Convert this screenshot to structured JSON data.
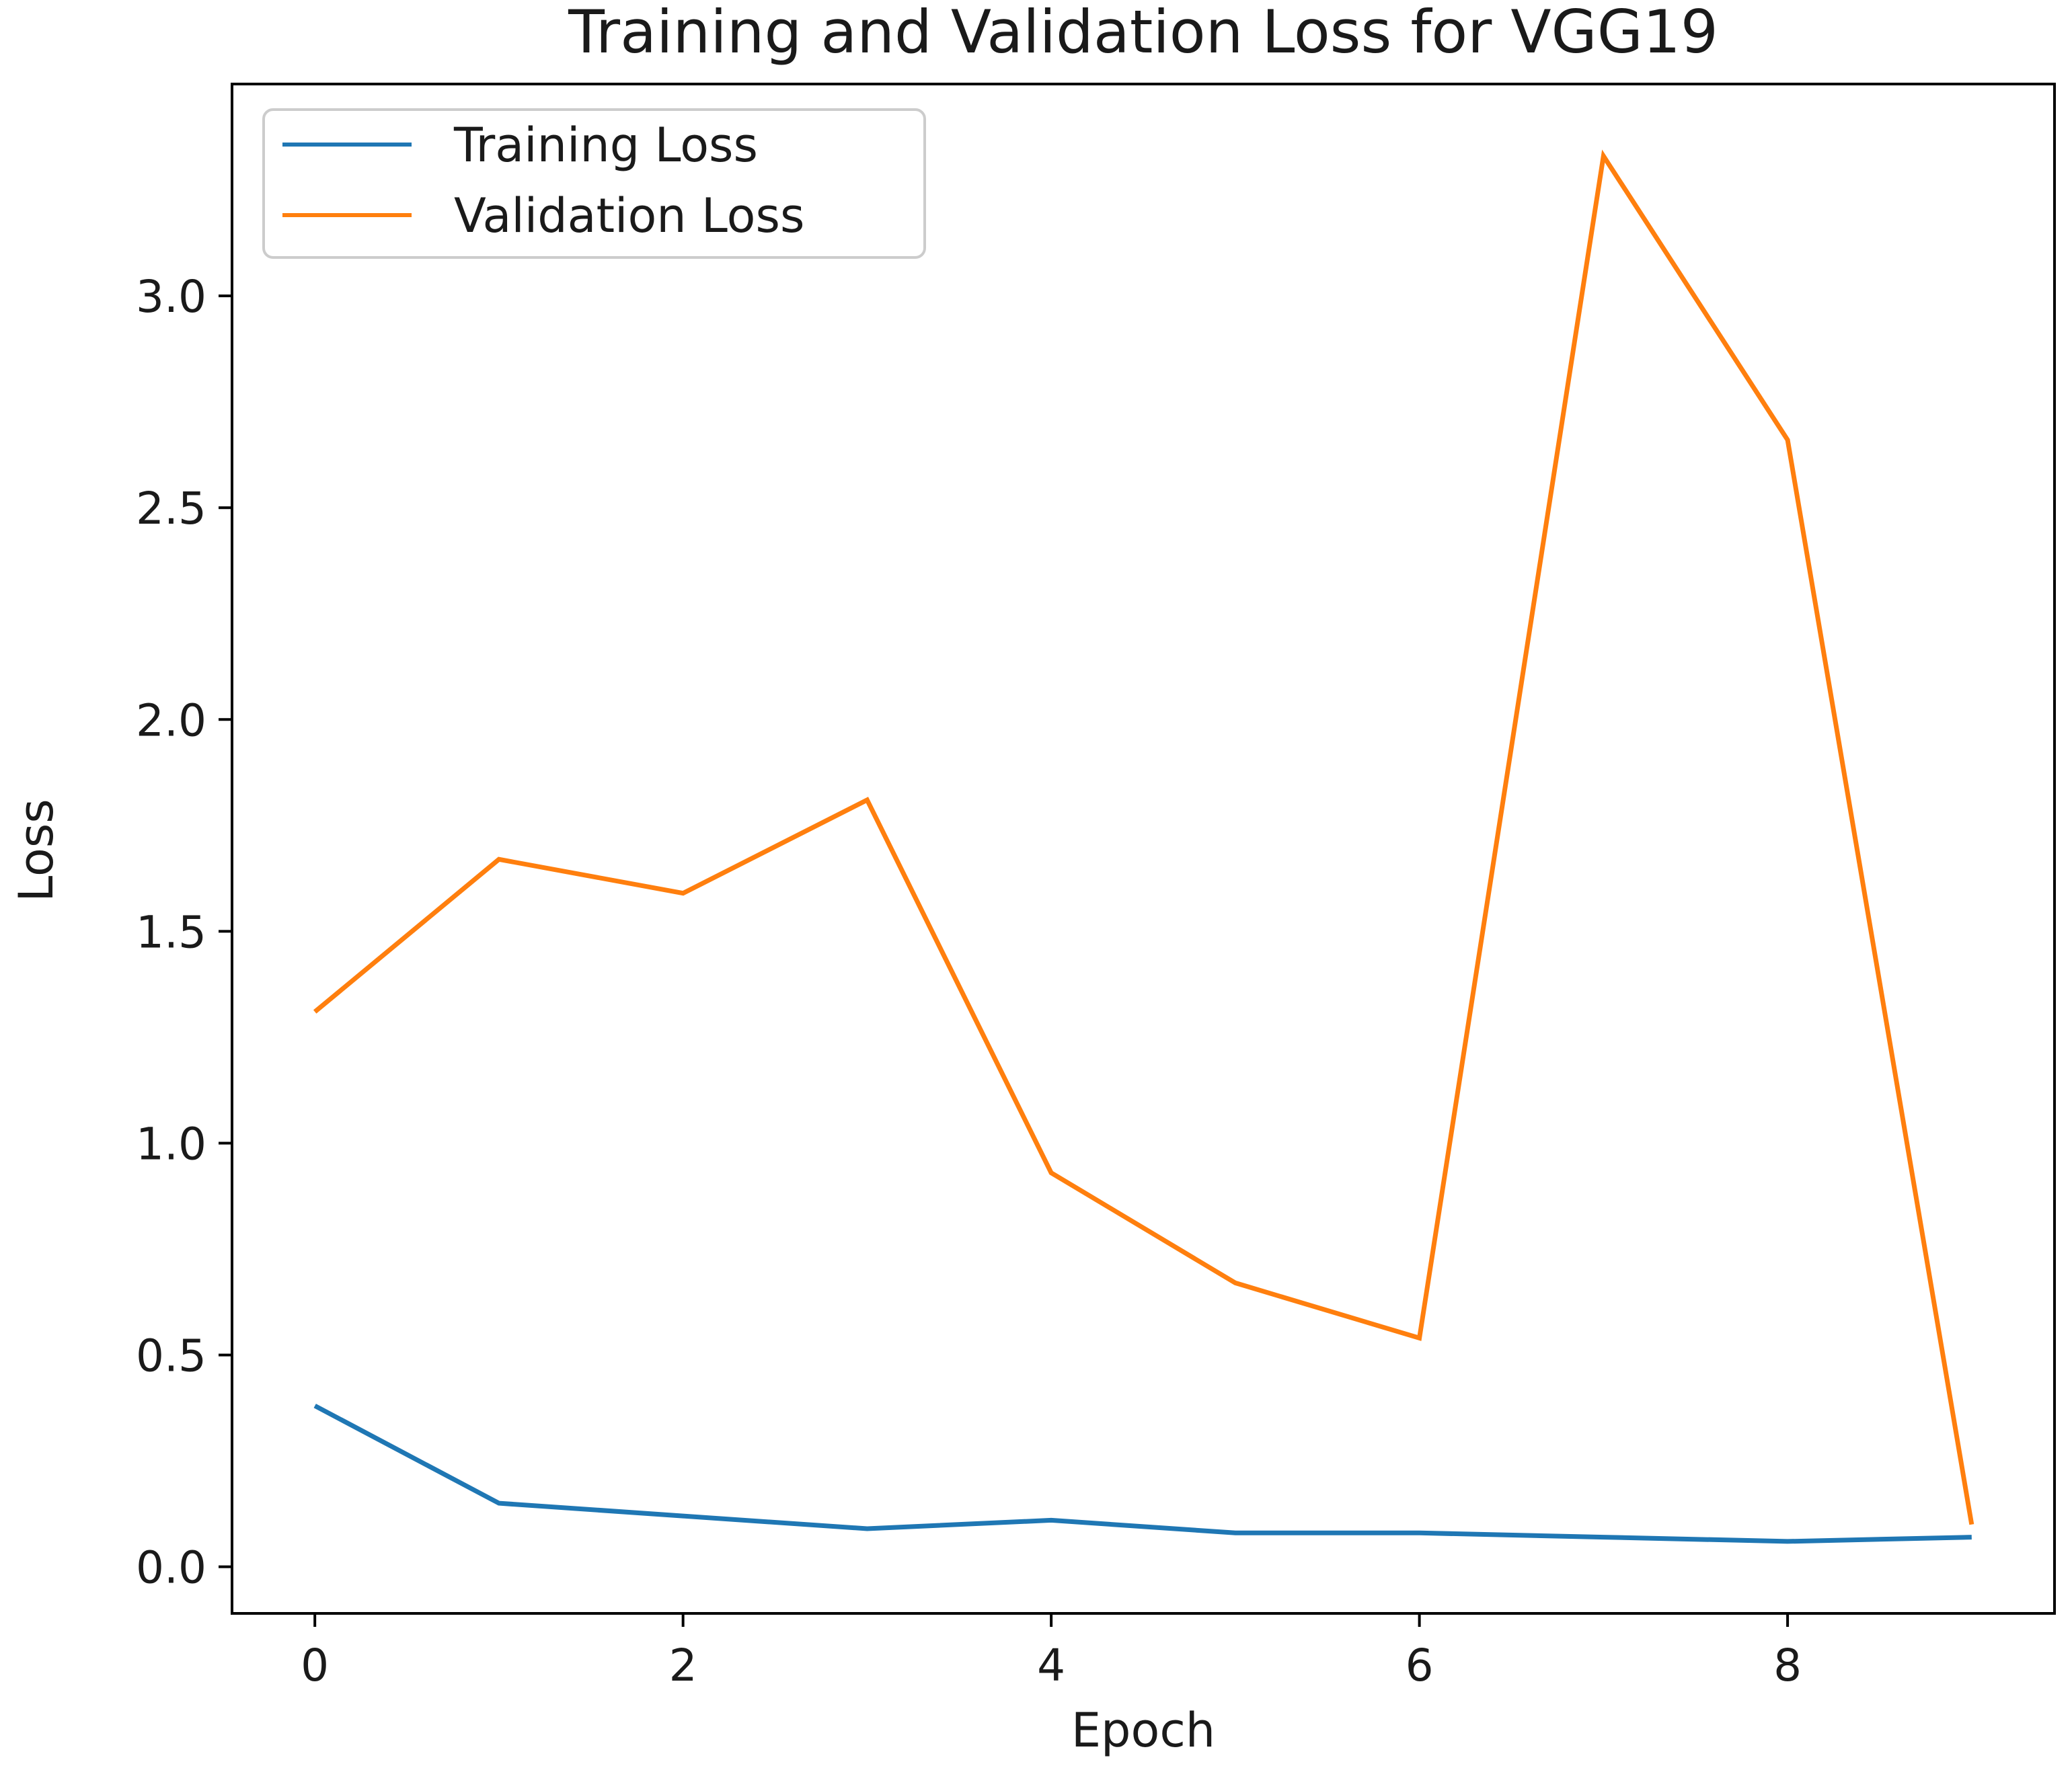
{
  "chart_data": {
    "type": "line",
    "title": "Training and Validation Loss for VGG19",
    "xlabel": "Epoch",
    "ylabel": "Loss",
    "xlim": [
      -0.45,
      9.45
    ],
    "ylim": [
      -0.11,
      3.5
    ],
    "xticks": [
      0,
      2,
      4,
      6,
      8
    ],
    "xtick_labels": [
      "0",
      "2",
      "4",
      "6",
      "8"
    ],
    "yticks": [
      0.0,
      0.5,
      1.0,
      1.5,
      2.0,
      2.5,
      3.0
    ],
    "ytick_labels": [
      "0.0",
      "0.5",
      "1.0",
      "1.5",
      "2.0",
      "2.5",
      "3.0"
    ],
    "grid": false,
    "legend_position": "top-left",
    "x": [
      0,
      1,
      2,
      3,
      4,
      5,
      6,
      7,
      8,
      9
    ],
    "series": [
      {
        "name": "Training Loss",
        "color": "#1f77b4",
        "values": [
          0.38,
          0.15,
          0.12,
          0.09,
          0.11,
          0.08,
          0.08,
          0.07,
          0.06,
          0.07
        ]
      },
      {
        "name": "Validation Loss",
        "color": "#ff7f0e",
        "values": [
          1.31,
          1.67,
          1.59,
          1.81,
          0.93,
          0.67,
          0.54,
          3.33,
          2.66,
          0.1
        ]
      }
    ]
  }
}
